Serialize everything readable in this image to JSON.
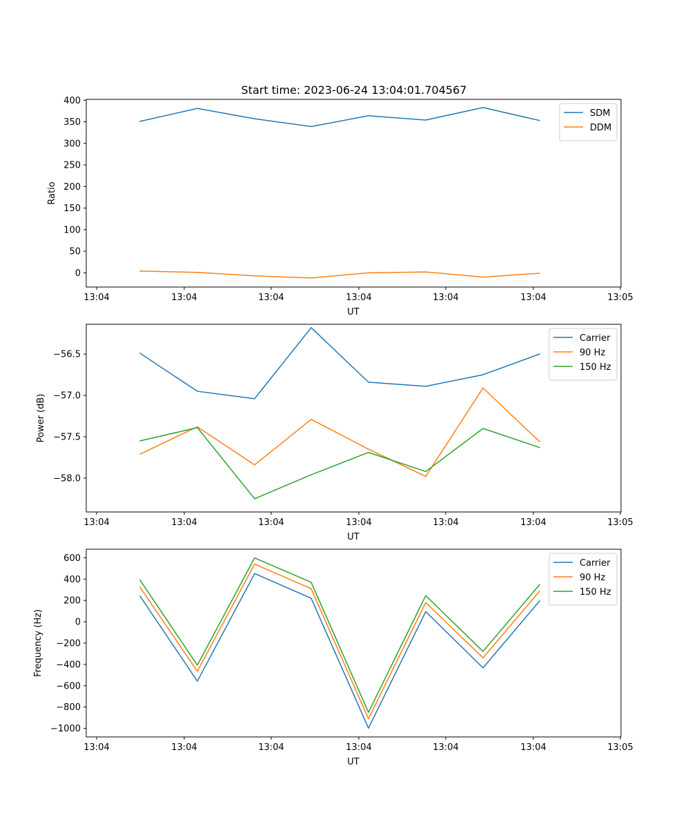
{
  "title": "Start time: 2023-06-24 13:04:01.704567",
  "chart_data": [
    {
      "type": "line",
      "xlabel": "UT",
      "ylabel": "Ratio",
      "xtick_labels": [
        "13:04",
        "13:04",
        "13:04",
        "13:04",
        "13:04",
        "13:04",
        "13:05"
      ],
      "ylim": [
        -33,
        402
      ],
      "yticks": [
        0,
        50,
        100,
        150,
        200,
        250,
        300,
        350,
        400
      ],
      "ytick_labels": [
        "0",
        "50",
        "100",
        "150",
        "200",
        "250",
        "300",
        "350",
        "400"
      ],
      "legend_position": "upper right",
      "series": [
        {
          "name": "SDM",
          "color": "#1f77b4",
          "values": [
            351,
            381,
            357,
            339,
            364,
            354,
            383,
            353
          ]
        },
        {
          "name": "DDM",
          "color": "#ff7f0e",
          "values": [
            4,
            1,
            -7,
            -12,
            0,
            2,
            -10,
            -1
          ]
        }
      ]
    },
    {
      "type": "line",
      "xlabel": "UT",
      "ylabel": "Power (dB)",
      "xtick_labels": [
        "13:04",
        "13:04",
        "13:04",
        "13:04",
        "13:04",
        "13:04",
        "13:05"
      ],
      "ylim": [
        -58.41,
        -56.14
      ],
      "yticks": [
        -58.0,
        -57.5,
        -57.0,
        -56.5
      ],
      "ytick_labels": [
        "−58.0",
        "−57.5",
        "−57.0",
        "−56.5"
      ],
      "legend_position": "upper right",
      "series": [
        {
          "name": "Carrier",
          "color": "#1f77b4",
          "values": [
            -56.49,
            -56.95,
            -57.04,
            -56.18,
            -56.84,
            -56.89,
            -56.75,
            -56.5
          ]
        },
        {
          "name": "90 Hz",
          "color": "#ff7f0e",
          "values": [
            -57.71,
            -57.38,
            -57.84,
            -57.29,
            -57.65,
            -57.98,
            -56.91,
            -57.56
          ]
        },
        {
          "name": "150 Hz",
          "color": "#2ca02c",
          "values": [
            -57.55,
            -57.39,
            -58.25,
            -57.96,
            -57.69,
            -57.92,
            -57.4,
            -57.63
          ]
        }
      ]
    },
    {
      "type": "line",
      "xlabel": "UT",
      "ylabel": "Frequency (Hz)",
      "xtick_labels": [
        "13:04",
        "13:04",
        "13:04",
        "13:04",
        "13:04",
        "13:04",
        "13:05"
      ],
      "ylim": [
        -1080,
        680
      ],
      "yticks": [
        -1000,
        -800,
        -600,
        -400,
        -200,
        0,
        200,
        400,
        600
      ],
      "ytick_labels": [
        "−1000",
        "−800",
        "−600",
        "−400",
        "−200",
        "0",
        "200",
        "400",
        "600"
      ],
      "legend_position": "upper right",
      "series": [
        {
          "name": "Carrier",
          "color": "#1f77b4",
          "values": [
            240,
            -557,
            452,
            220,
            -998,
            95,
            -432,
            195
          ]
        },
        {
          "name": "90 Hz",
          "color": "#ff7f0e",
          "values": [
            323,
            -465,
            541,
            310,
            -910,
            180,
            -338,
            287
          ]
        },
        {
          "name": "150 Hz",
          "color": "#2ca02c",
          "values": [
            390,
            -407,
            599,
            370,
            -850,
            245,
            -278,
            348
          ]
        }
      ]
    }
  ]
}
